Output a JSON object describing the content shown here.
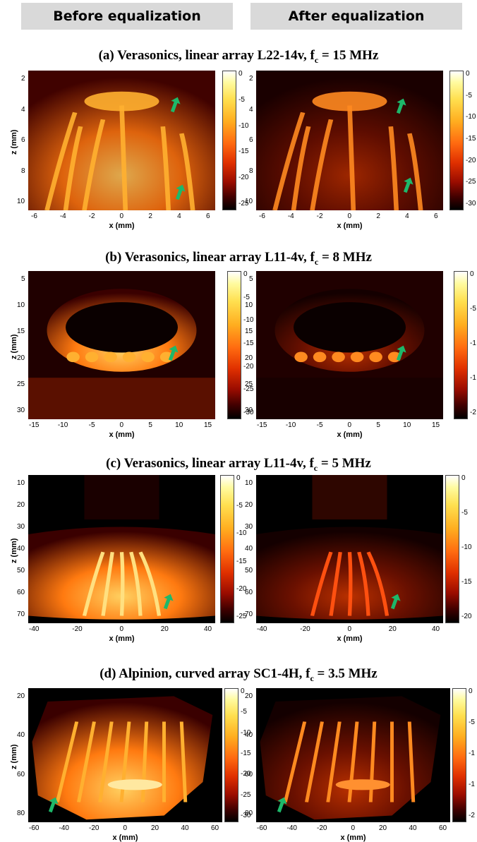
{
  "headers": {
    "before": "Before equalization",
    "after": "After equalization"
  },
  "panels": [
    {
      "id": "a",
      "title_pre": "(a) Verasonics, linear array L22-14v, f",
      "title_sub": "c",
      "title_post": " = 15 MHz",
      "xlabel": "x (mm)",
      "zlabel": "z (mm)",
      "xticks": [
        "-6",
        "-4",
        "-2",
        "0",
        "2",
        "4",
        "6"
      ],
      "zticks": [
        "2",
        "4",
        "6",
        "8",
        "10"
      ],
      "cbar_before": [
        "0",
        "-5",
        "-10",
        "-15",
        "-20",
        "-25"
      ],
      "cbar_after": [
        "0",
        "-5",
        "-10",
        "-15",
        "-20",
        "-25",
        "-30"
      ]
    },
    {
      "id": "b",
      "title_pre": "(b) Verasonics, linear array L11-4v, f",
      "title_sub": "c",
      "title_post": " = 8 MHz",
      "xlabel": "x (mm)",
      "zlabel": "z (mm)",
      "xticks": [
        "-15",
        "-10",
        "-5",
        "0",
        "5",
        "10",
        "15"
      ],
      "zticks": [
        "5",
        "10",
        "15",
        "20",
        "25",
        "30"
      ],
      "cbar_before": [
        "0",
        "-5",
        "-10",
        "-15",
        "-20",
        "-25",
        "-30"
      ],
      "cbar_after": [
        "0",
        "-5",
        "-1",
        "-1",
        "-2"
      ]
    },
    {
      "id": "c",
      "title_pre": "(c) Verasonics, linear array L11-4v, f",
      "title_sub": "c",
      "title_post": " = 5 MHz",
      "xlabel": "x (mm)",
      "zlabel": "z (mm)",
      "xticks": [
        "-40",
        "-20",
        "0",
        "20",
        "40"
      ],
      "zticks": [
        "10",
        "20",
        "30",
        "40",
        "50",
        "60",
        "70"
      ],
      "cbar_before": [
        "0",
        "-5",
        "-10",
        "-15",
        "-20",
        "-25"
      ],
      "cbar_after": [
        "0",
        "-5",
        "-10",
        "-15",
        "-20"
      ]
    },
    {
      "id": "d",
      "title_pre": "(d) Alpinion, curved array SC1-4H, f",
      "title_sub": "c",
      "title_post": " = 3.5 MHz",
      "xlabel": "x (mm)",
      "zlabel": "z (mm)",
      "xticks": [
        "-60",
        "-40",
        "-20",
        "0",
        "20",
        "40",
        "60"
      ],
      "zticks": [
        "20",
        "40",
        "60",
        "80"
      ],
      "cbar_before": [
        "0",
        "-5",
        "-10",
        "-15",
        "-20",
        "-25",
        "-30"
      ],
      "cbar_after": [
        "0",
        "-5",
        "-1",
        "-1",
        "-2"
      ]
    }
  ],
  "colors": {
    "arrow": "#1db86a",
    "header_bg": "#d9d9d9"
  }
}
